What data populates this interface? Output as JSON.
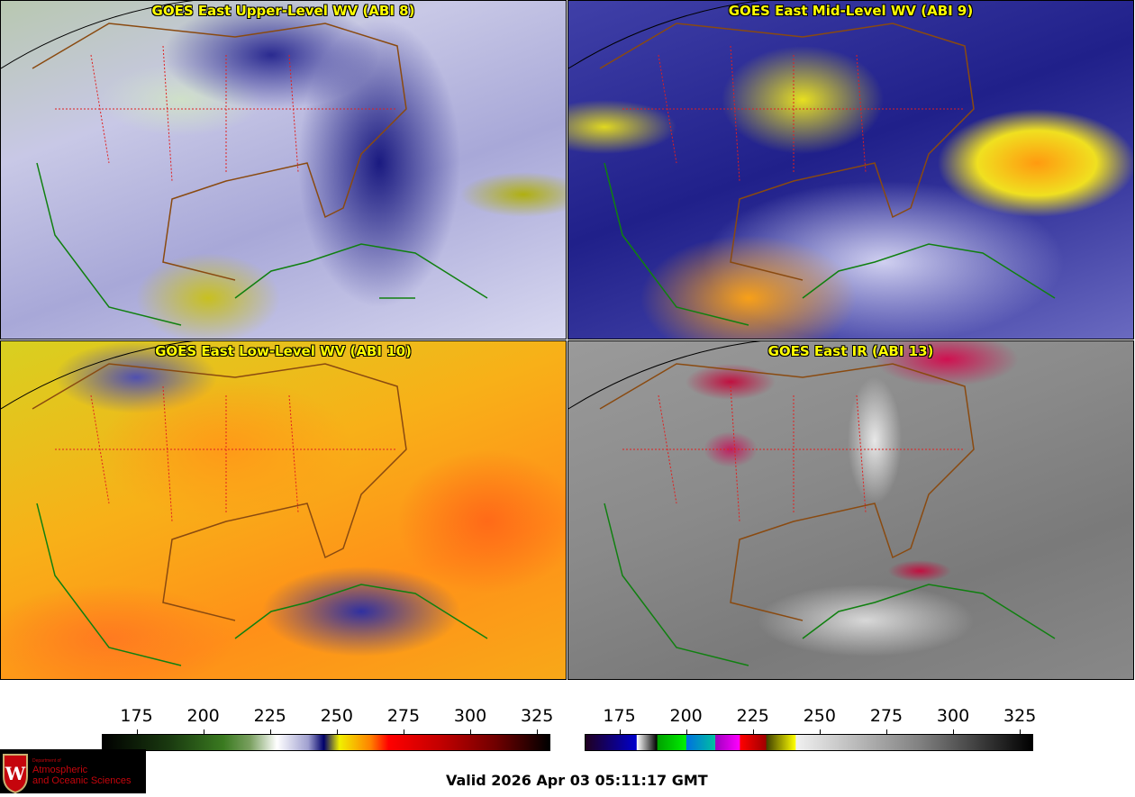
{
  "panels": [
    {
      "title": "GOES East Upper-Level WV (ABI 8)"
    },
    {
      "title": "GOES East Mid-Level WV (ABI 9)"
    },
    {
      "title": "GOES East Low-Level WV (ABI 10)"
    },
    {
      "title": "GOES East IR (ABI 13)"
    }
  ],
  "colorbar_wv": {
    "ticks": [
      "175",
      "200",
      "225",
      "250",
      "275",
      "300",
      "325"
    ],
    "range": [
      162,
      330
    ]
  },
  "colorbar_ir": {
    "ticks": [
      "175",
      "200",
      "225",
      "250",
      "275",
      "300",
      "325"
    ],
    "range": [
      162,
      330
    ]
  },
  "logo": {
    "line1": "Department of",
    "line2": "Atmospheric",
    "line3": "and Oceanic Sciences",
    "mark": "W"
  },
  "valid_time": "Valid 2026 Apr 03 05:11:17 GMT"
}
